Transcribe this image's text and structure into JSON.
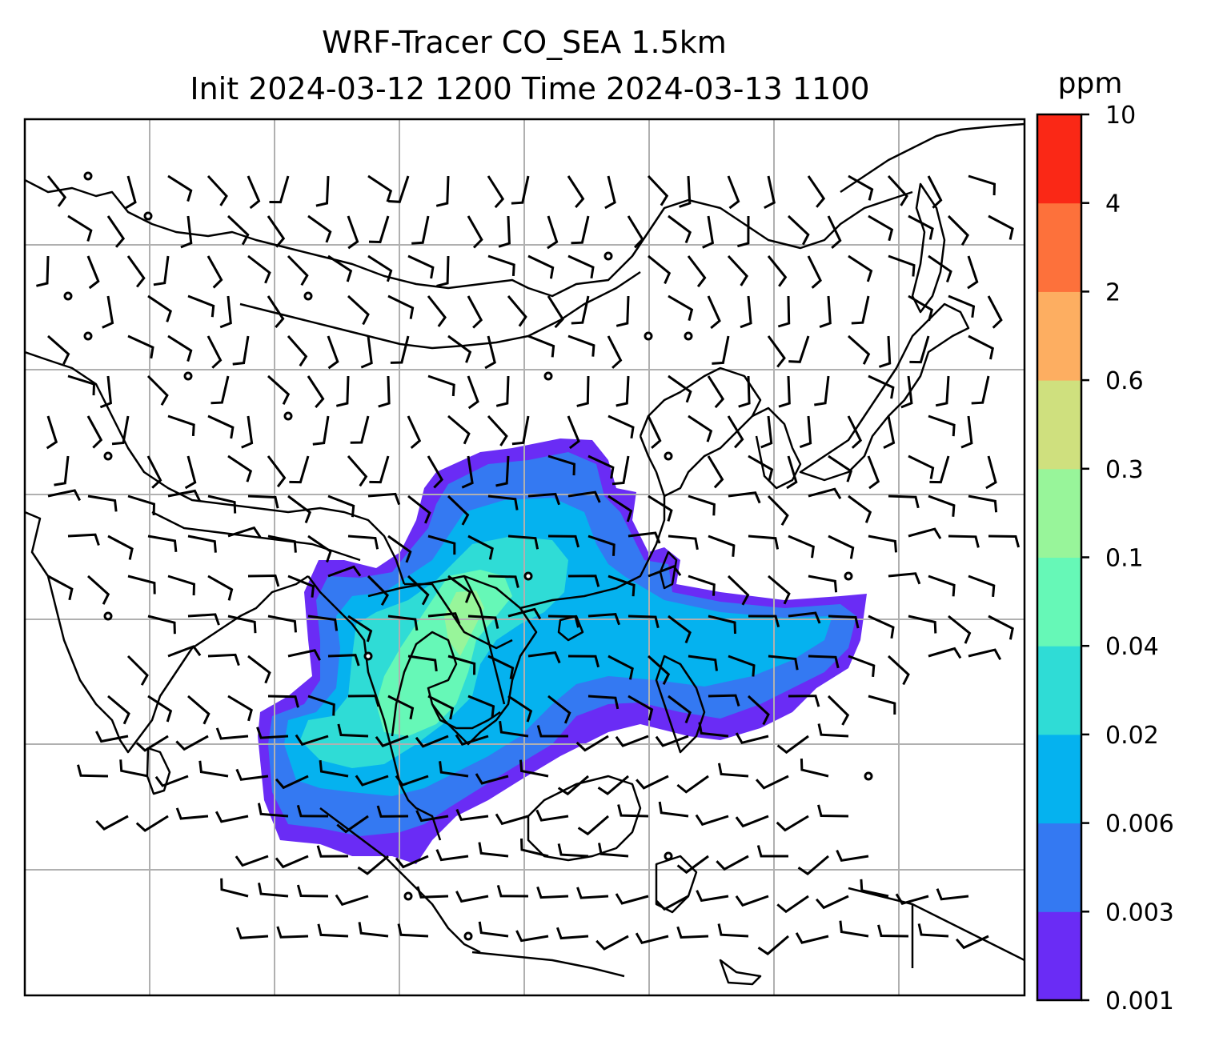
{
  "map": {
    "title_line1": "WRF-Tracer CO_SEA 1.5km",
    "title_line2": "Init 2024-03-12 1200 Time 2024-03-13 1100",
    "field": "CO tracer concentration",
    "overlays": [
      "coastlines",
      "country borders",
      "wind barbs",
      "lat/lon gridlines"
    ],
    "gridlines": true
  },
  "colorbar": {
    "unit": "ppm",
    "levels": [
      "0.001",
      "0.003",
      "0.006",
      "0.02",
      "0.04",
      "0.1",
      "0.3",
      "0.6",
      "2",
      "4",
      "10"
    ],
    "colors": [
      "#6a2cf5",
      "#3479f2",
      "#05b2ef",
      "#2fdcd6",
      "#66f8b7",
      "#98f59a",
      "#cfe07e",
      "#fdae61",
      "#fd713b",
      "#fa2816"
    ]
  }
}
